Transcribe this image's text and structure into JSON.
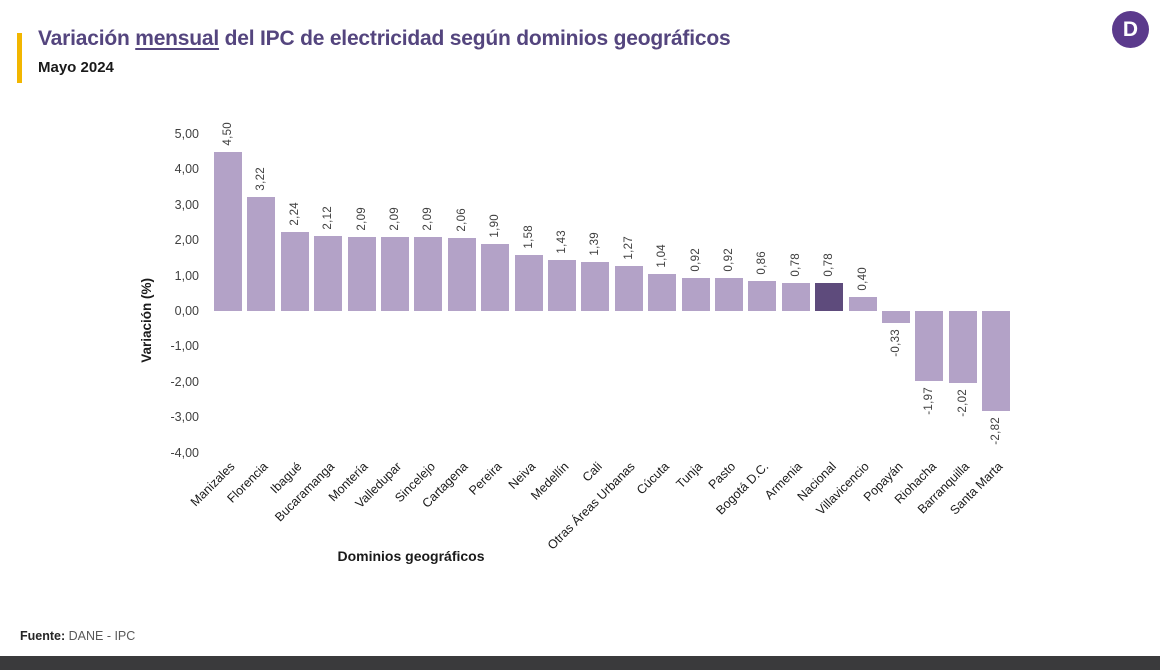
{
  "header": {
    "title_prefix": "Variación ",
    "title_emphasis": "mensual",
    "title_suffix": " del IPC de electricidad según dominios geográficos",
    "subtitle": "Mayo 2024",
    "accent_color": "#F2B600",
    "title_color": "#54457E"
  },
  "logo": {
    "letter": "D",
    "bg_color": "#5B3A8C"
  },
  "chart_data": {
    "type": "bar",
    "title": "Variación mensual del IPC de electricidad según dominios geográficos",
    "subtitle": "Mayo 2024",
    "xlabel": "Dominios geográficos",
    "ylabel": "Variación (%)",
    "categories": [
      "Manizales",
      "Florencia",
      "Ibagué",
      "Bucaramanga",
      "Montería",
      "Valledupar",
      "Sincelejo",
      "Cartagena",
      "Pereira",
      "Neiva",
      "Medellín",
      "Cali",
      "Otras Áreas Urbanas",
      "Cúcuta",
      "Tunja",
      "Pasto",
      "Bogotá D.C.",
      "Armenia",
      "Nacional",
      "Villavicencio",
      "Popayán",
      "Riohacha",
      "Barranquilla",
      "Santa Marta"
    ],
    "values": [
      4.5,
      3.22,
      2.24,
      2.12,
      2.09,
      2.09,
      2.09,
      2.06,
      1.9,
      1.58,
      1.43,
      1.39,
      1.27,
      1.04,
      0.92,
      0.92,
      0.86,
      0.78,
      0.78,
      0.4,
      -0.33,
      -1.97,
      -2.02,
      -2.82
    ],
    "highlight_category": "Nacional",
    "highlight_index": 18,
    "yticks": [
      "5,00",
      "4,00",
      "3,00",
      "2,00",
      "1,00",
      "0,00",
      "-1,00",
      "-2,00",
      "-3,00",
      "-4,00"
    ],
    "ylim": [
      -4,
      5
    ],
    "grid": false,
    "legend": "none",
    "bar_color": "#B3A2C7",
    "highlight_color": "#5E4B7C",
    "value_label_color": "#404040",
    "decimal_separator": ","
  },
  "footer": {
    "source_label": "Fuente:",
    "source_value": "DANE - IPC"
  }
}
